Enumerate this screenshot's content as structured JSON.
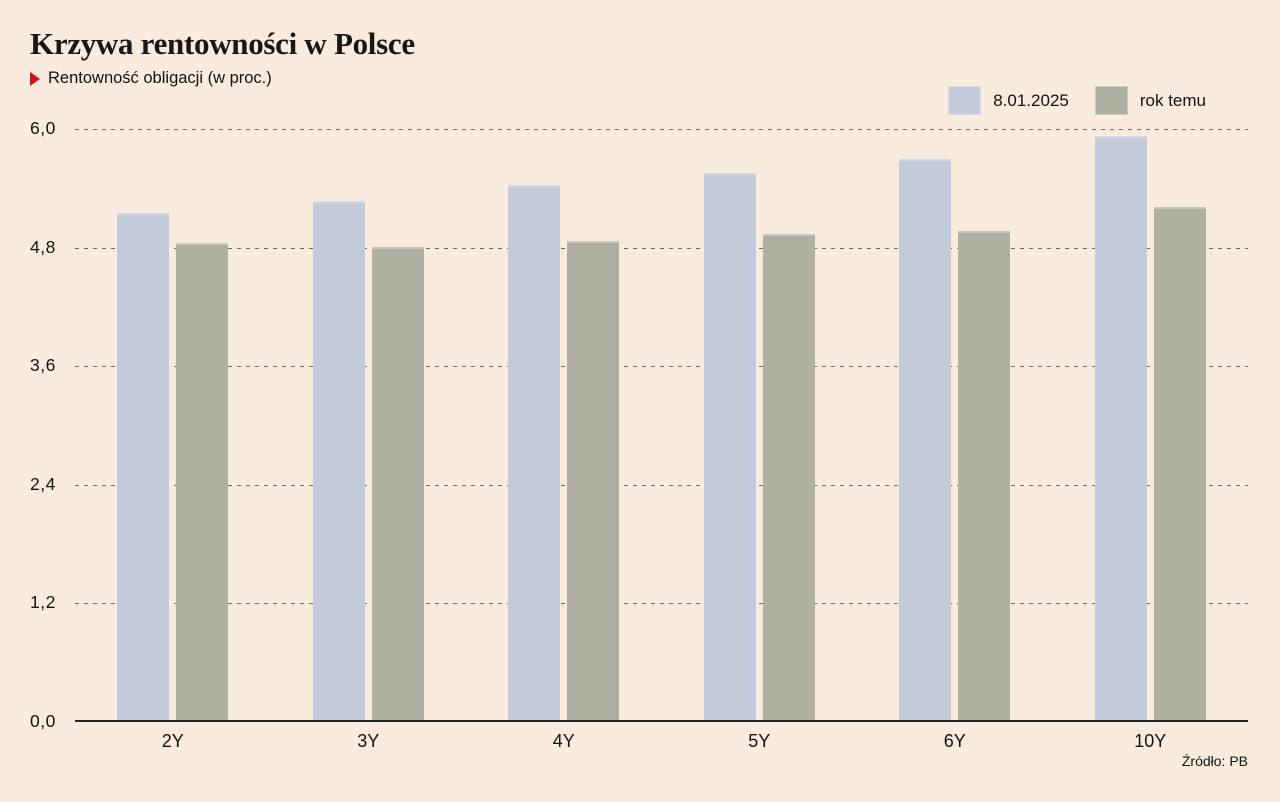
{
  "header": {
    "title": "Krzywa rentowności w Polsce",
    "subtitle": "Rentowność obligacji (w proc.)"
  },
  "source": "Źródło: PB",
  "colors": {
    "background": "#f9ebde",
    "series_current": "#c2cbda",
    "series_previous": "#aeb1a2",
    "accent_red": "#d31114",
    "text": "#14120f",
    "gridline": "#6f6963",
    "axis": "#24221f"
  },
  "chart_data": {
    "type": "bar",
    "title": "Krzywa rentowności w Polsce",
    "subtitle": "Rentowność obligacji (w proc.)",
    "categories": [
      "2Y",
      "3Y",
      "4Y",
      "5Y",
      "6Y",
      "10Y"
    ],
    "series": [
      {
        "name": "8.01.2025",
        "color": "#c2cbda",
        "values": [
          5.15,
          5.27,
          5.43,
          5.55,
          5.7,
          5.93
        ]
      },
      {
        "name": "rok temu",
        "color": "#aeb1a2",
        "values": [
          4.85,
          4.81,
          4.87,
          4.94,
          4.97,
          5.21
        ]
      }
    ],
    "xlabel": "",
    "ylabel": "",
    "ylim": [
      0,
      6.0
    ],
    "yticks": [
      {
        "label": "6,0",
        "value": 6.0
      },
      {
        "label": "4,8",
        "value": 4.8
      },
      {
        "label": "3,6",
        "value": 3.6
      },
      {
        "label": "2,4",
        "value": 2.4
      },
      {
        "label": "1,2",
        "value": 1.2
      },
      {
        "label": "0,0",
        "value": 0.0
      }
    ],
    "grid": "horizontal-dashed",
    "legend_position": "top-right",
    "source": "Źródło: PB"
  }
}
